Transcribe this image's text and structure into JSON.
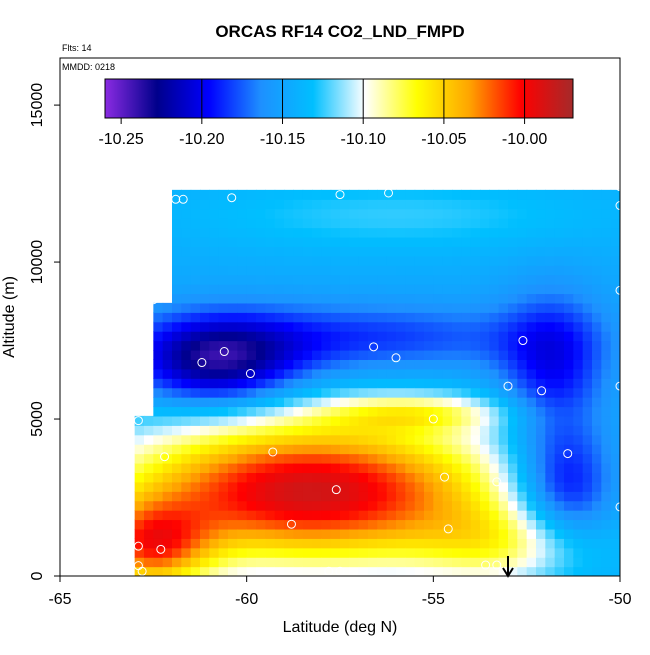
{
  "chart_data": {
    "type": "heatmap",
    "title": "ORCAS RF14 CO2_LND_FMPD",
    "annotations": {
      "flights": "Flts: 14",
      "date": "MMDD: 0218"
    },
    "xlabel": "Latitude (deg N)",
    "ylabel": "Altitude (m)",
    "xlim": [
      -65,
      -50
    ],
    "ylim": [
      0,
      16500
    ],
    "x_ticks": [
      -65,
      -60,
      -55,
      -50
    ],
    "x_tick_labels": [
      "-65",
      "-60",
      "-55",
      "-50"
    ],
    "y_ticks": [
      0,
      5000,
      10000,
      15000
    ],
    "y_tick_labels": [
      "0",
      "5000",
      "10000",
      "15000"
    ],
    "colorbar": {
      "range": [
        -10.26,
        -9.97
      ],
      "ticks": [
        -10.25,
        -10.2,
        -10.15,
        -10.1,
        -10.05,
        -10.0
      ],
      "tick_labels": [
        "-10.25",
        "-10.20",
        "-10.15",
        "-10.10",
        "-10.05",
        "-10.00"
      ],
      "colors": [
        "#8a2be2",
        "#00008b",
        "#0000ff",
        "#1e90ff",
        "#00bfff",
        "#ffffff",
        "#ffff00",
        "#ffa500",
        "#ff0000",
        "#a52a2a"
      ]
    },
    "footprint": [
      [
        -63.0,
        0
      ],
      [
        -63.0,
        5000
      ],
      [
        -62.5,
        5000
      ],
      [
        -62.5,
        8800
      ],
      [
        -62.0,
        8800
      ],
      [
        -62.0,
        12300
      ],
      [
        -50.0,
        12300
      ],
      [
        -50.0,
        0
      ]
    ],
    "sample_points": [
      [
        -61.9,
        12000
      ],
      [
        -61.7,
        12000
      ],
      [
        -60.4,
        12050
      ],
      [
        -57.5,
        12150
      ],
      [
        -56.2,
        12200
      ],
      [
        -50.0,
        12400
      ],
      [
        -50.0,
        11800
      ],
      [
        -50.0,
        9100
      ],
      [
        -62.5,
        8800
      ],
      [
        -61.2,
        6800
      ],
      [
        -60.6,
        7150
      ],
      [
        -59.9,
        6450
      ],
      [
        -56.6,
        7300
      ],
      [
        -56.0,
        6950
      ],
      [
        -55.0,
        5000
      ],
      [
        -53.0,
        6050
      ],
      [
        -52.6,
        7500
      ],
      [
        -52.1,
        5900
      ],
      [
        -50.0,
        6050
      ],
      [
        -62.9,
        4950
      ],
      [
        -62.2,
        3800
      ],
      [
        -59.3,
        3950
      ],
      [
        -54.7,
        3150
      ],
      [
        -53.3,
        3000
      ],
      [
        -51.4,
        3900
      ],
      [
        -50.0,
        2200
      ],
      [
        -57.6,
        2750
      ],
      [
        -58.8,
        1650
      ],
      [
        -54.6,
        1500
      ],
      [
        -62.9,
        950
      ],
      [
        -62.3,
        850
      ],
      [
        -62.9,
        330
      ],
      [
        -62.8,
        150
      ],
      [
        -57.8,
        150
      ],
      [
        -57.5,
        150
      ],
      [
        -53.6,
        350
      ],
      [
        -53.3,
        350
      ]
    ],
    "field_description": "Gridded CO2 land flux anomaly by latitude and altitude; strongest negative values near -61 deg N, 6800 m; positive values below 4000 m"
  },
  "arrow": {
    "latitude": -53.0
  }
}
